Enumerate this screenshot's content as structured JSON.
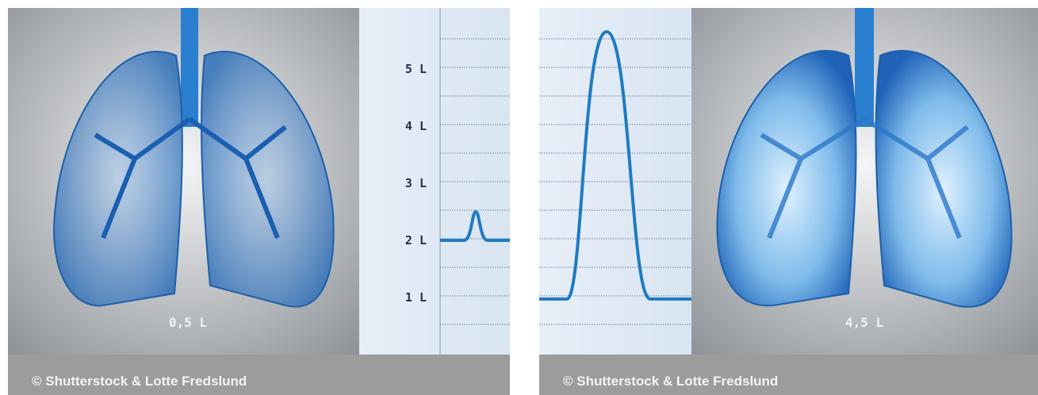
{
  "axis_labels": [
    "5 L",
    "4 L",
    "3 L",
    "2 L",
    "1 L"
  ],
  "panels": [
    {
      "volume_label": "0,5 L",
      "caption": "© Shutterstock & Lotte Fredslund"
    },
    {
      "volume_label": "4,5 L",
      "caption": "© Shutterstock & Lotte Fredslund"
    }
  ]
}
